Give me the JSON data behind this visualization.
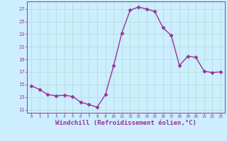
{
  "x": [
    0,
    1,
    2,
    3,
    4,
    5,
    6,
    7,
    8,
    9,
    10,
    11,
    12,
    13,
    14,
    15,
    16,
    17,
    18,
    19,
    20,
    21,
    22,
    23
  ],
  "y": [
    14.8,
    14.2,
    13.4,
    13.2,
    13.3,
    13.1,
    12.2,
    11.8,
    11.4,
    13.4,
    18.0,
    23.2,
    26.8,
    27.3,
    27.0,
    26.6,
    24.0,
    22.8,
    18.0,
    19.5,
    19.3,
    17.1,
    16.9,
    17.0
  ],
  "line_color": "#993399",
  "marker": "D",
  "markersize": 2.5,
  "linewidth": 1.0,
  "xlabel": "Windchill (Refroidissement éolien,°C)",
  "xlabel_fontsize": 6.5,
  "xtick_labels": [
    "0",
    "1",
    "2",
    "3",
    "4",
    "5",
    "6",
    "7",
    "8",
    "9",
    "10",
    "11",
    "12",
    "13",
    "14",
    "15",
    "16",
    "17",
    "18",
    "19",
    "20",
    "21",
    "22",
    "23"
  ],
  "ytick_values": [
    11,
    13,
    15,
    17,
    19,
    21,
    23,
    25,
    27
  ],
  "ylim": [
    10.5,
    28.2
  ],
  "xlim": [
    -0.5,
    23.5
  ],
  "bg_color": "#cceeff",
  "grid_color": "#aaddcc",
  "tick_color": "#993399",
  "label_color": "#993399"
}
